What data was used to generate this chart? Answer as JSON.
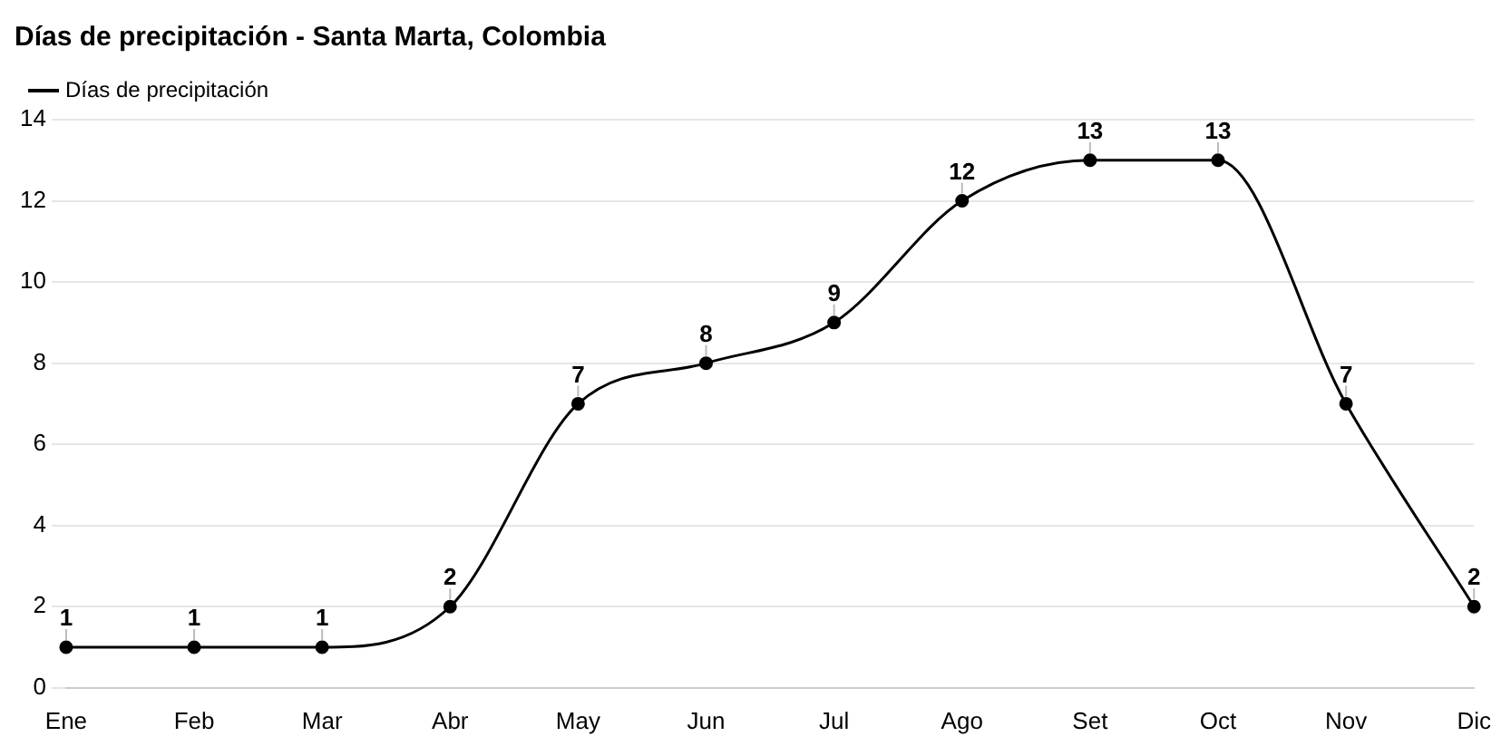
{
  "chart_data": {
    "type": "line",
    "title": "Días de precipitación - Santa Marta, Colombia",
    "categories": [
      "Ene",
      "Feb",
      "Mar",
      "Abr",
      "May",
      "Jun",
      "Jul",
      "Ago",
      "Set",
      "Oct",
      "Nov",
      "Dic"
    ],
    "series": [
      {
        "name": "Días de precipitación",
        "color": "#000000",
        "values": [
          1,
          1,
          1,
          2,
          7,
          8,
          9,
          12,
          13,
          13,
          7,
          2
        ]
      }
    ],
    "ylim": [
      0,
      14
    ],
    "yticks": [
      0,
      2,
      4,
      6,
      8,
      10,
      12,
      14
    ],
    "grid": "y",
    "legend": "top left",
    "marker": "circle",
    "line_style": "solid",
    "data_labels": true
  }
}
